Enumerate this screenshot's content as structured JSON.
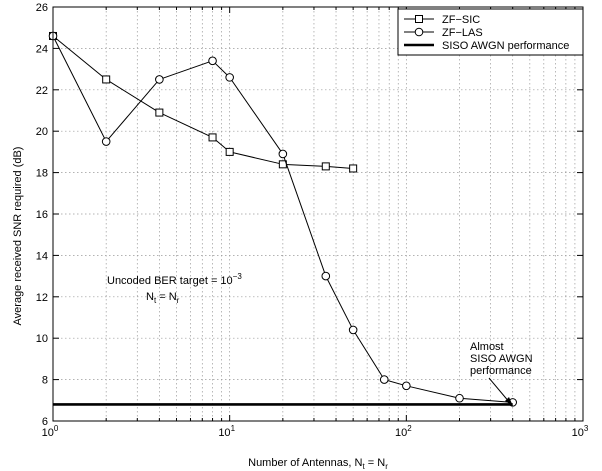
{
  "chart_data": {
    "type": "line",
    "x_scale": "log",
    "xlim": [
      1,
      1000
    ],
    "ylim": [
      6,
      26
    ],
    "grid": true,
    "legend_position": "top-right",
    "xticks": [
      {
        "value": 1,
        "base": "10",
        "exp": "0"
      },
      {
        "value": 10,
        "base": "10",
        "exp": "1"
      },
      {
        "value": 100,
        "base": "10",
        "exp": "2"
      },
      {
        "value": 1000,
        "base": "10",
        "exp": "3"
      }
    ],
    "yticks": [
      6,
      8,
      10,
      12,
      14,
      16,
      18,
      20,
      22,
      24,
      26
    ],
    "xlabel": {
      "text": "Number of Antennas,  N",
      "sub1": "t",
      "mid": " = N",
      "sub2": "r"
    },
    "ylabel": "Average received SNR required (dB)",
    "series": [
      {
        "name": "ZF−SIC",
        "marker": "square",
        "x": [
          1,
          2,
          4,
          8,
          10,
          20,
          35,
          50
        ],
        "y": [
          24.6,
          22.5,
          20.9,
          19.7,
          19.0,
          18.4,
          18.3,
          18.2
        ]
      },
      {
        "name": "ZF−LAS",
        "marker": "circle",
        "x": [
          1,
          2,
          4,
          8,
          10,
          20,
          35,
          50,
          75,
          100,
          200,
          400
        ],
        "y": [
          24.6,
          19.5,
          22.5,
          23.4,
          22.6,
          18.9,
          13.0,
          10.4,
          8.0,
          7.7,
          7.1,
          6.9
        ]
      },
      {
        "name": "SISO AWGN performance",
        "marker": "none",
        "thick": true,
        "x": [
          1,
          400
        ],
        "y": [
          6.8,
          6.8
        ]
      }
    ],
    "annotations": {
      "ber": {
        "text": "Uncoded BER target = 10",
        "sup": "−3"
      },
      "nt": {
        "text": "N",
        "sub1": "t",
        "mid": " = N",
        "sub2": "r"
      },
      "almost": [
        "Almost",
        "SISO AWGN",
        "performance"
      ]
    }
  }
}
